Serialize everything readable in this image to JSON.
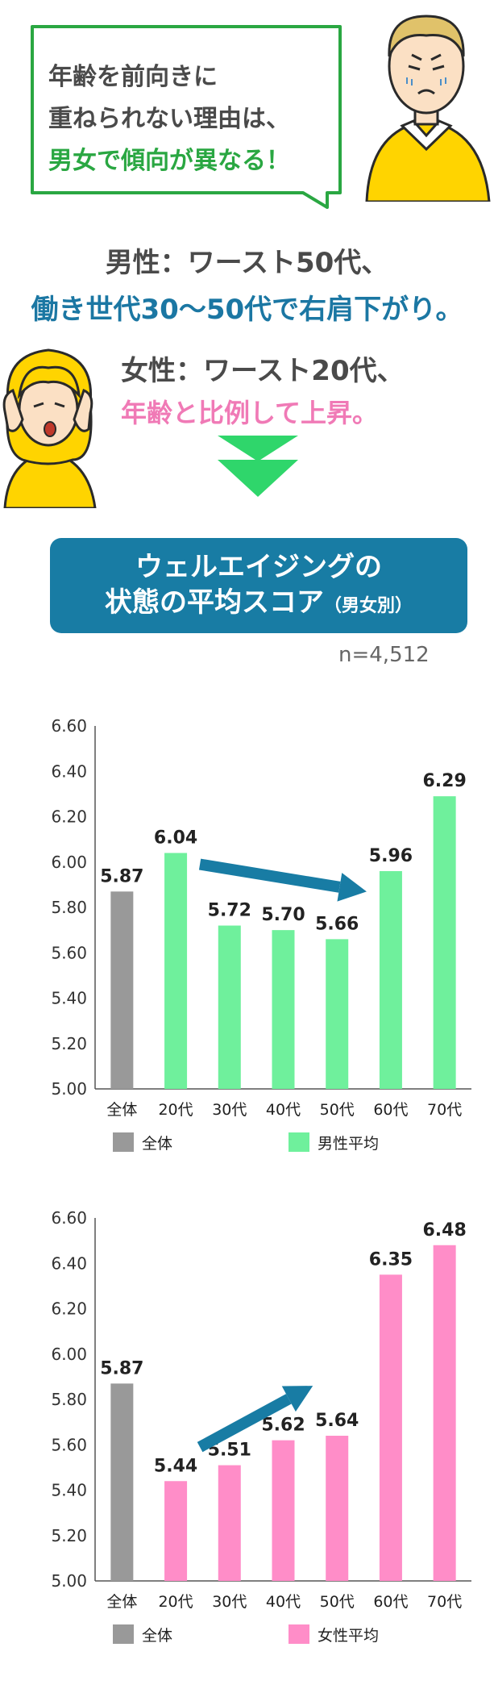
{
  "intro": {
    "line1": "年齢を前向きに",
    "line2": "重ねられない理由は、",
    "line3": "男女で傾向が異なる！"
  },
  "male_summary": {
    "line1": "男性：ワースト50代、",
    "line2": "働き世代30〜50代で右肩下がり。"
  },
  "female_summary": {
    "line1": "女性：ワースト20代、",
    "line2": "年齢と比例して上昇。"
  },
  "title": {
    "line1": "ウェルエイジングの",
    "line2_main": "状態の平均スコア",
    "line2_sub": "（男女別）"
  },
  "sample_size": "n=4,512",
  "colors": {
    "green_accent": "#2aa742",
    "blue_title": "#187ca4",
    "pink_accent": "#f07ab6",
    "overall_bar": "#999999",
    "male_bar": "#6ff09c",
    "female_bar": "#ff8dc8",
    "arrow": "#187ca4"
  },
  "chart_data": [
    {
      "type": "bar",
      "categories": [
        "全体",
        "20代",
        "30代",
        "40代",
        "50代",
        "60代",
        "70代"
      ],
      "values": [
        5.87,
        6.04,
        5.72,
        5.7,
        5.66,
        5.96,
        6.29
      ],
      "value_labels": [
        "5.87",
        "6.04",
        "5.72",
        "5.70",
        "5.66",
        "5.96",
        "6.29"
      ],
      "yticks": [
        "5.00",
        "5.20",
        "5.40",
        "5.60",
        "5.80",
        "6.00",
        "6.20",
        "6.40",
        "6.60"
      ],
      "ylim": [
        5.0,
        6.6
      ],
      "legend": [
        {
          "name": "全体"
        },
        {
          "name": "男性平均"
        }
      ],
      "legend_placement": "bottom-left",
      "annotation": "arrow pointing down-right from 20代 to 60代"
    },
    {
      "type": "bar",
      "categories": [
        "全体",
        "20代",
        "30代",
        "40代",
        "50代",
        "60代",
        "70代"
      ],
      "values": [
        5.87,
        5.44,
        5.51,
        5.62,
        5.64,
        6.35,
        6.48
      ],
      "value_labels": [
        "5.87",
        "5.44",
        "5.51",
        "5.62",
        "5.64",
        "6.35",
        "6.48"
      ],
      "yticks": [
        "5.00",
        "5.20",
        "5.40",
        "5.60",
        "5.80",
        "6.00",
        "6.20",
        "6.40",
        "6.60"
      ],
      "ylim": [
        5.0,
        6.6
      ],
      "legend": [
        {
          "name": "全体"
        },
        {
          "name": "女性平均"
        }
      ],
      "legend_placement": "bottom-left",
      "annotation": "arrow pointing up-right from 20代 to 50代"
    }
  ]
}
